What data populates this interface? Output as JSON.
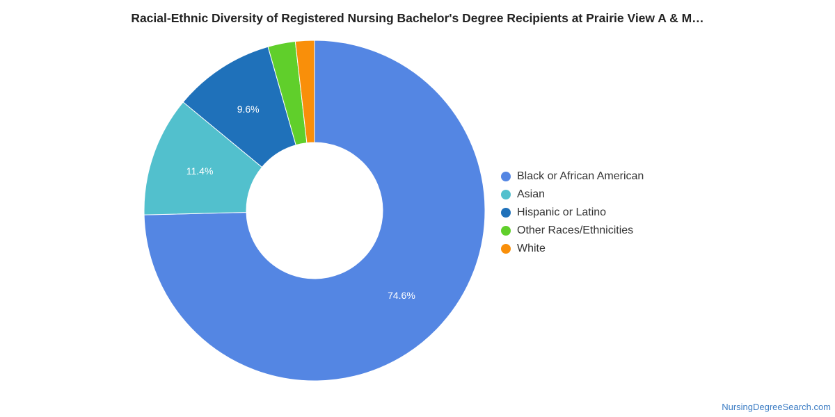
{
  "title": "Racial-Ethnic Diversity of Registered Nursing Bachelor's Degree Recipients at Prairie View A & M…",
  "source": "NursingDegreeSearch.com",
  "chart_data": {
    "type": "pie",
    "subtype": "donut",
    "legend_position": "right",
    "slices": [
      {
        "label": "Black or African American",
        "value": 74.6,
        "display_label": "74.6%",
        "color": "#5486E3"
      },
      {
        "label": "Asian",
        "value": 11.4,
        "display_label": "11.4%",
        "color": "#52C0CD"
      },
      {
        "label": "Hispanic or Latino",
        "value": 9.6,
        "display_label": "9.6%",
        "color": "#1F71BA"
      },
      {
        "label": "Other Races/Ethnicities",
        "value": 2.6,
        "display_label": "",
        "color": "#60CF2B"
      },
      {
        "label": "White",
        "value": 1.8,
        "display_label": "",
        "color": "#F98F0A"
      }
    ]
  }
}
